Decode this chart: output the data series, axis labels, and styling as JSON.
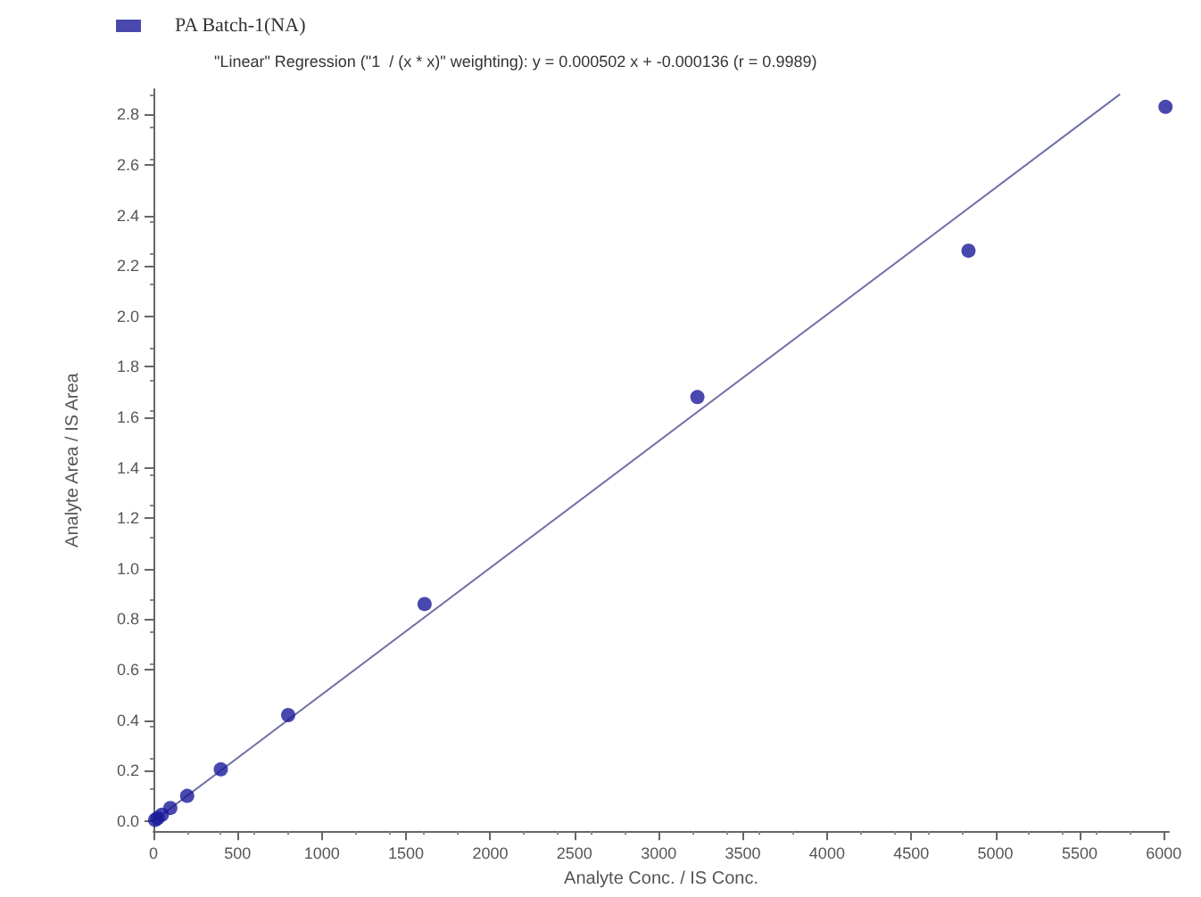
{
  "chart_data": {
    "type": "scatter",
    "xlabel": "Analyte Conc. / IS Conc.",
    "ylabel": "Analyte Area / IS Area",
    "annotations": [
      "\"Linear\" Regression (\"1  / (x * x)\" weighting): y = 0.000502 x + -0.000136 (r = 0.9989)"
    ],
    "series": [
      {
        "name": "PA Batch-1(NA)",
        "color": "#1a1a9a",
        "marker": "circle",
        "x": [
          10,
          25,
          50,
          100,
          200,
          400,
          800,
          1610,
          3230,
          4840,
          6010
        ],
        "values": [
          0.005,
          0.012,
          0.025,
          0.052,
          0.1,
          0.205,
          0.42,
          0.86,
          1.68,
          2.26,
          2.83
        ]
      },
      {
        "type": "line",
        "color": "#7070a8",
        "marker": "none",
        "x": [
          0,
          5740
        ],
        "values": [
          0,
          2.88
        ]
      }
    ],
    "xlim": [
      0,
      6030
    ],
    "xticks": [
      0,
      500,
      1000,
      1500,
      2000,
      2500,
      3000,
      3500,
      4000,
      4500,
      5000,
      5500,
      6000
    ],
    "ylim": [
      -0.04,
      2.9
    ],
    "yticks": [
      {
        "value": 0,
        "label": "0.0"
      },
      0.2,
      0.4,
      0.6,
      0.8,
      {
        "value": 1,
        "label": "1.0"
      },
      1.2,
      1.4,
      1.6,
      1.8,
      {
        "value": 2,
        "label": "2.0"
      },
      2.2,
      2.4,
      2.6,
      2.8
    ],
    "grid": false,
    "legend": "top left"
  }
}
